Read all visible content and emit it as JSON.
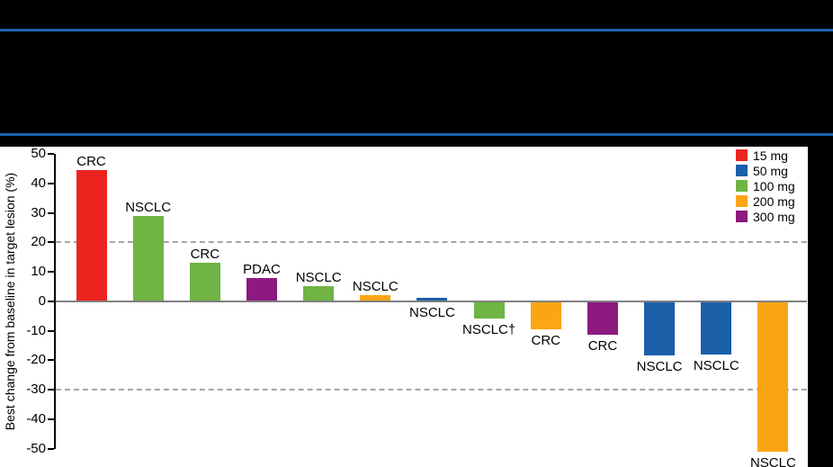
{
  "colors": {
    "background": "#000000",
    "panel": "#ffffff",
    "header_rule": "#1e63b0",
    "axis": "#000000",
    "zero_line": "#808080",
    "reference_line": "#a6a6a6",
    "text": "#000000"
  },
  "dose_colors": {
    "15 mg": "#ec2420",
    "50 mg": "#1b5fa8",
    "100 mg": "#6fb444",
    "200 mg": "#fba515",
    "300 mg": "#8c1a7f"
  },
  "chart_data": {
    "type": "bar",
    "subtype": "waterfall",
    "title": "",
    "ylabel": "Best change from baseline in target lesion (%)",
    "ylim": [
      -50,
      50
    ],
    "yticks": [
      50,
      40,
      30,
      20,
      10,
      0,
      -10,
      -20,
      -30,
      -40,
      -50
    ],
    "reference_lines": [
      20,
      -30
    ],
    "grid": "off",
    "legend_position": "top-right",
    "legend": [
      "15 mg",
      "50 mg",
      "100 mg",
      "200 mg",
      "300 mg"
    ],
    "bars": [
      {
        "label": "CRC",
        "value": 44.5,
        "dose": "15 mg",
        "label_position": "above"
      },
      {
        "label": "NSCLC",
        "value": 29,
        "dose": "100 mg",
        "label_position": "above"
      },
      {
        "label": "CRC",
        "value": 13,
        "dose": "100 mg",
        "label_position": "above"
      },
      {
        "label": "PDAC",
        "value": 8,
        "dose": "300 mg",
        "label_position": "above"
      },
      {
        "label": "NSCLC",
        "value": 5,
        "dose": "100 mg",
        "label_position": "above"
      },
      {
        "label": "NSCLC",
        "value": 2,
        "dose": "200 mg",
        "label_position": "above"
      },
      {
        "label": "NSCLC",
        "value": 1,
        "dose": "50 mg",
        "label_position": "below"
      },
      {
        "label": "NSCLC†",
        "value": -6,
        "dose": "100 mg",
        "label_position": "below"
      },
      {
        "label": "CRC",
        "value": -9.5,
        "dose": "200 mg",
        "label_position": "below"
      },
      {
        "label": "CRC",
        "value": -11.5,
        "dose": "300 mg",
        "label_position": "below"
      },
      {
        "label": "NSCLC",
        "value": -18.5,
        "dose": "50 mg",
        "label_position": "below"
      },
      {
        "label": "NSCLC",
        "value": -18,
        "dose": "50 mg",
        "label_position": "below"
      },
      {
        "label": "NSCLC",
        "value": -51,
        "dose": "200 mg",
        "label_position": "below"
      }
    ]
  }
}
